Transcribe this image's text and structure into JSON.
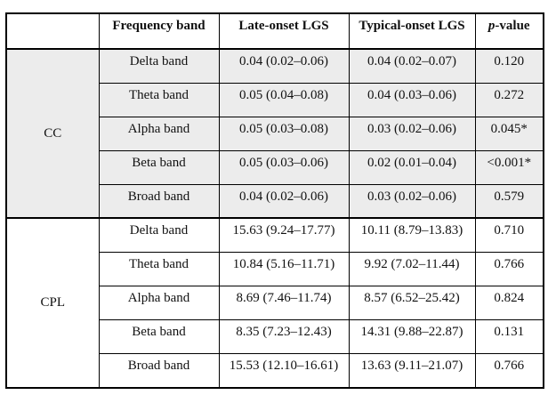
{
  "table": {
    "headers": [
      "",
      "Frequency band",
      "Late-onset LGS",
      "Typical-onset LGS",
      "p-value"
    ],
    "p_header": {
      "italic": "p",
      "rest": "-value"
    },
    "shaded_row_color": "#ececec",
    "border_color": "#000000",
    "groups": [
      {
        "label": "CC",
        "rows": [
          {
            "band": "Delta band",
            "late": "0.04 (0.02–0.06)",
            "typical": "0.04 (0.02–0.07)",
            "p": "0.120"
          },
          {
            "band": "Theta band",
            "late": "0.05 (0.04–0.08)",
            "typical": "0.04 (0.03–0.06)",
            "p": "0.272"
          },
          {
            "band": "Alpha band",
            "late": "0.05 (0.03–0.08)",
            "typical": "0.03 (0.02–0.06)",
            "p": "0.045*"
          },
          {
            "band": "Beta band",
            "late": "0.05 (0.03–0.06)",
            "typical": "0.02 (0.01–0.04)",
            "p": "<0.001*"
          },
          {
            "band": "Broad band",
            "late": "0.04 (0.02–0.06)",
            "typical": "0.03 (0.02–0.06)",
            "p": "0.579"
          }
        ]
      },
      {
        "label": "CPL",
        "rows": [
          {
            "band": "Delta band",
            "late": "15.63 (9.24–17.77)",
            "typical": "10.11 (8.79–13.83)",
            "p": "0.710"
          },
          {
            "band": "Theta band",
            "late": "10.84 (5.16–11.71)",
            "typical": "9.92 (7.02–11.44)",
            "p": "0.766"
          },
          {
            "band": "Alpha band",
            "late": "8.69 (7.46–11.74)",
            "typical": "8.57 (6.52–25.42)",
            "p": "0.824"
          },
          {
            "band": "Beta band",
            "late": "8.35 (7.23–12.43)",
            "typical": "14.31 (9.88–22.87)",
            "p": "0.131"
          },
          {
            "band": "Broad band",
            "late": "15.53 (12.10–16.61)",
            "typical": "13.63 (9.11–21.07)",
            "p": "0.766"
          }
        ]
      }
    ]
  },
  "chart_data": {
    "type": "table",
    "title": "",
    "columns": [
      "Frequency band",
      "Late-onset LGS",
      "Typical-onset LGS",
      "p-value"
    ],
    "row_groups": [
      "CC",
      "CPL"
    ]
  }
}
